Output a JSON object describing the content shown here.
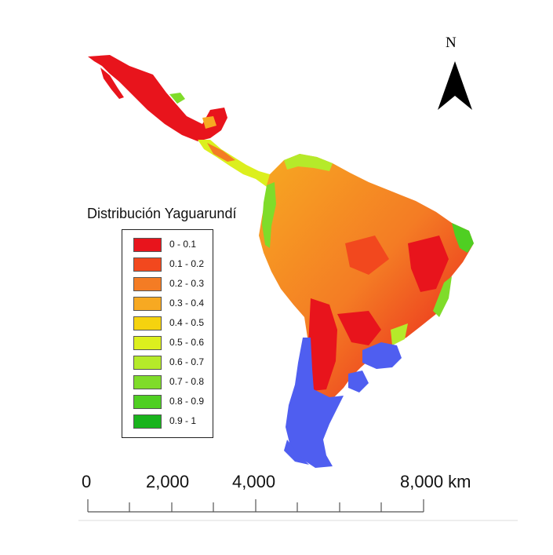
{
  "north_arrow": {
    "label": "N",
    "icon": "north-arrow-icon"
  },
  "legend": {
    "title": "Distribución Yaguarundí",
    "classes": [
      {
        "label": "0 - 0.1",
        "color": "#e8141c"
      },
      {
        "label": "0.1 - 0.2",
        "color": "#f2481e"
      },
      {
        "label": "0.2 - 0.3",
        "color": "#f47c24"
      },
      {
        "label": "0.3 - 0.4",
        "color": "#f7a922"
      },
      {
        "label": "0.4 - 0.5",
        "color": "#f5d30f"
      },
      {
        "label": "0.5 - 0.6",
        "color": "#dcef1e"
      },
      {
        "label": "0.6 - 0.7",
        "color": "#b5ea2a"
      },
      {
        "label": "0.7 - 0.8",
        "color": "#7fdc2a"
      },
      {
        "label": "0.8 - 0.9",
        "color": "#4fcf22"
      },
      {
        "label": "0.9 - 1",
        "color": "#19b41c"
      }
    ]
  },
  "scale_bar": {
    "labels": [
      "0",
      "2,000",
      "4,000",
      "8,000 km"
    ]
  },
  "colors": {
    "no_data": "#4f5ef0"
  }
}
